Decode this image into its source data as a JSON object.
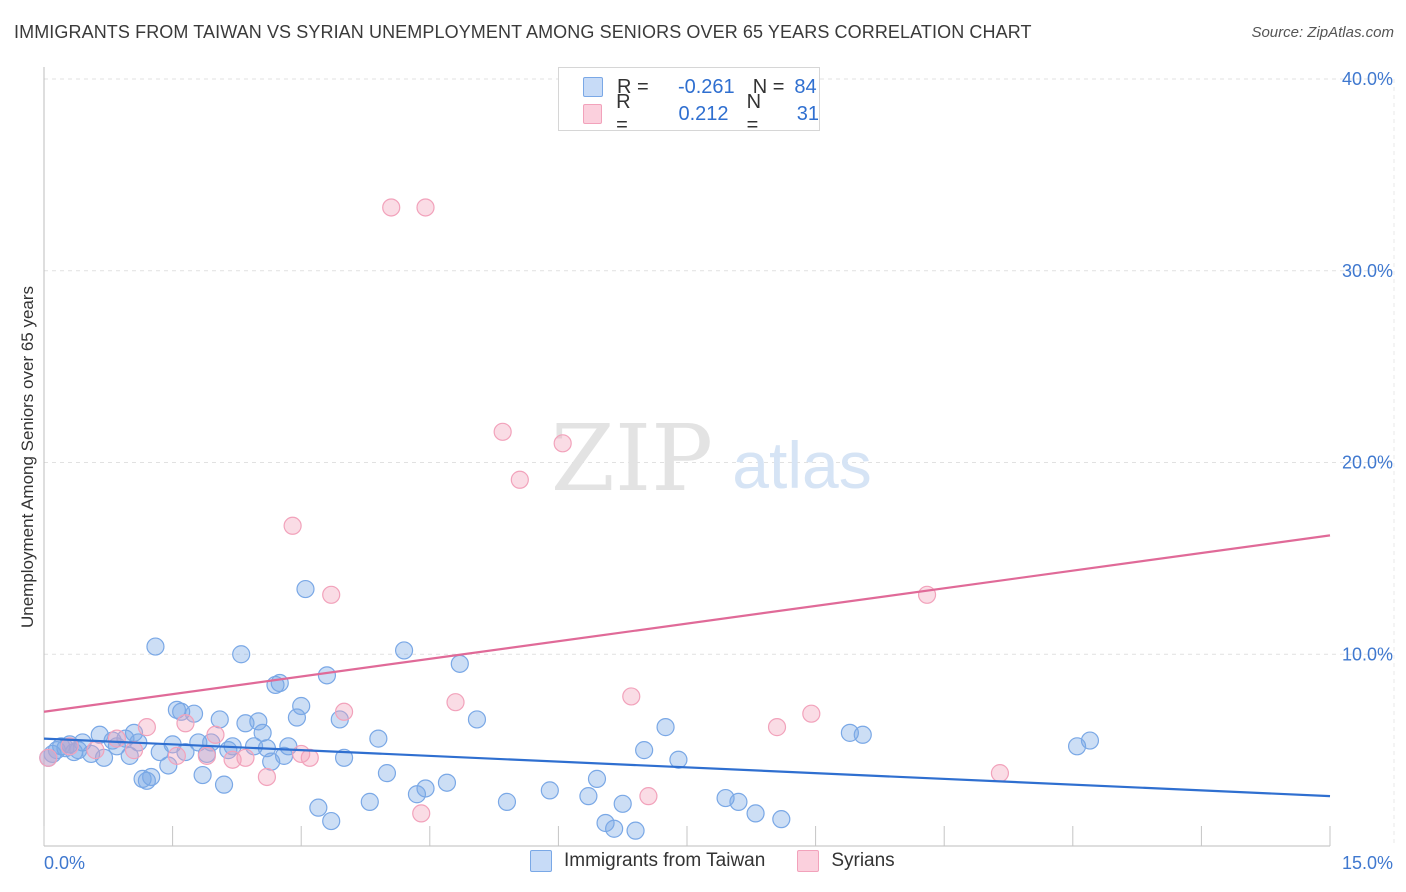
{
  "title": "IMMIGRANTS FROM TAIWAN VS SYRIAN UNEMPLOYMENT AMONG SENIORS OVER 65 YEARS CORRELATION CHART",
  "source": "Source: ZipAtlas.com",
  "watermark": {
    "zip": "ZIP",
    "atlas": "atlas"
  },
  "legend": {
    "rows": [
      {
        "r_label": "R =",
        "r_value": "-0.261",
        "n_label": "N =",
        "n_value": "84",
        "color": "#a9c8f2"
      },
      {
        "r_label": "R =",
        "r_value": "0.212",
        "n_label": "N =",
        "n_value": "31",
        "color": "#f7b8cb"
      }
    ]
  },
  "bottom_legend": [
    {
      "label": "Immigrants from Taiwan",
      "color": "#a9c8f2"
    },
    {
      "label": "Syrians",
      "color": "#f7b8cb"
    }
  ],
  "chart_data": {
    "type": "scatter",
    "title": "IMMIGRANTS FROM TAIWAN VS SYRIAN UNEMPLOYMENT AMONG SENIORS OVER 65 YEARS CORRELATION CHART",
    "xlabel": "",
    "ylabel": "Unemployment Among Seniors over 65 years",
    "xlim": [
      0,
      15
    ],
    "ylim": [
      0,
      40
    ],
    "x_tick_labels": [
      "0.0%",
      "15.0%"
    ],
    "y_ticks": [
      10,
      20,
      30,
      40
    ],
    "y_tick_labels": [
      "10.0%",
      "20.0%",
      "30.0%",
      "40.0%"
    ],
    "grid": true,
    "series": [
      {
        "name": "Immigrants from Taiwan",
        "color": "#7aa8e6",
        "line_color": "#2f6fd0",
        "trend": [
          [
            0,
            5.6
          ],
          [
            15,
            2.6
          ]
        ],
        "points": [
          [
            0.1,
            4.8
          ],
          [
            0.15,
            5.0
          ],
          [
            0.2,
            5.2
          ],
          [
            0.25,
            5.1
          ],
          [
            0.3,
            5.3
          ],
          [
            0.35,
            4.9
          ],
          [
            0.45,
            5.4
          ],
          [
            0.55,
            4.8
          ],
          [
            0.65,
            5.8
          ],
          [
            0.7,
            4.6
          ],
          [
            0.8,
            5.5
          ],
          [
            0.85,
            5.2
          ],
          [
            0.95,
            5.6
          ],
          [
            1.0,
            4.7
          ],
          [
            1.1,
            5.4
          ],
          [
            1.15,
            3.5
          ],
          [
            1.2,
            3.4
          ],
          [
            1.25,
            3.6
          ],
          [
            1.3,
            10.4
          ],
          [
            1.35,
            4.9
          ],
          [
            1.45,
            4.2
          ],
          [
            1.5,
            5.3
          ],
          [
            1.55,
            7.1
          ],
          [
            1.6,
            7.0
          ],
          [
            1.65,
            4.9
          ],
          [
            1.75,
            6.9
          ],
          [
            1.8,
            5.4
          ],
          [
            1.85,
            3.7
          ],
          [
            1.9,
            4.8
          ],
          [
            1.95,
            5.4
          ],
          [
            2.05,
            6.6
          ],
          [
            2.1,
            3.2
          ],
          [
            2.15,
            5.0
          ],
          [
            2.2,
            5.2
          ],
          [
            2.3,
            10.0
          ],
          [
            2.35,
            6.4
          ],
          [
            2.45,
            5.2
          ],
          [
            2.5,
            6.5
          ],
          [
            2.55,
            5.9
          ],
          [
            2.6,
            5.1
          ],
          [
            2.7,
            8.4
          ],
          [
            2.75,
            8.5
          ],
          [
            2.8,
            4.7
          ],
          [
            2.85,
            5.2
          ],
          [
            2.95,
            6.7
          ],
          [
            3.0,
            7.3
          ],
          [
            3.05,
            13.4
          ],
          [
            3.2,
            2.0
          ],
          [
            3.3,
            8.9
          ],
          [
            3.35,
            1.3
          ],
          [
            3.45,
            6.6
          ],
          [
            3.5,
            4.6
          ],
          [
            3.8,
            2.3
          ],
          [
            4.0,
            3.8
          ],
          [
            4.2,
            10.2
          ],
          [
            4.35,
            2.7
          ],
          [
            4.45,
            3.0
          ],
          [
            4.7,
            3.3
          ],
          [
            4.85,
            9.5
          ],
          [
            5.05,
            6.6
          ],
          [
            5.4,
            2.3
          ],
          [
            5.9,
            2.9
          ],
          [
            6.35,
            2.6
          ],
          [
            6.45,
            3.5
          ],
          [
            6.55,
            1.2
          ],
          [
            6.65,
            0.9
          ],
          [
            6.75,
            2.2
          ],
          [
            6.9,
            0.8
          ],
          [
            7.0,
            5.0
          ],
          [
            7.25,
            6.2
          ],
          [
            7.4,
            4.5
          ],
          [
            7.95,
            2.5
          ],
          [
            8.1,
            2.3
          ],
          [
            8.3,
            1.7
          ],
          [
            8.6,
            1.4
          ],
          [
            9.4,
            5.9
          ],
          [
            9.55,
            5.8
          ],
          [
            12.05,
            5.2
          ],
          [
            12.2,
            5.5
          ],
          [
            0.05,
            4.6
          ],
          [
            0.4,
            5.0
          ],
          [
            1.05,
            5.9
          ],
          [
            2.65,
            4.4
          ],
          [
            3.9,
            5.6
          ]
        ]
      },
      {
        "name": "Syrians",
        "color": "#f2a2bb",
        "line_color": "#e06a98",
        "trend": [
          [
            0,
            7.0
          ],
          [
            15,
            16.2
          ]
        ],
        "points": [
          [
            0.05,
            4.6
          ],
          [
            0.3,
            5.2
          ],
          [
            0.6,
            5.0
          ],
          [
            0.85,
            5.6
          ],
          [
            1.05,
            5.0
          ],
          [
            1.2,
            6.2
          ],
          [
            1.55,
            4.7
          ],
          [
            1.65,
            6.4
          ],
          [
            1.9,
            4.7
          ],
          [
            2.0,
            5.8
          ],
          [
            2.2,
            4.5
          ],
          [
            2.35,
            4.6
          ],
          [
            2.6,
            3.6
          ],
          [
            2.9,
            16.7
          ],
          [
            3.1,
            4.6
          ],
          [
            3.35,
            13.1
          ],
          [
            3.5,
            7.0
          ],
          [
            4.05,
            33.3
          ],
          [
            4.45,
            33.3
          ],
          [
            4.4,
            1.7
          ],
          [
            4.8,
            7.5
          ],
          [
            5.35,
            21.6
          ],
          [
            5.55,
            19.1
          ],
          [
            6.05,
            21.0
          ],
          [
            6.85,
            7.8
          ],
          [
            7.05,
            2.6
          ],
          [
            8.55,
            6.2
          ],
          [
            8.95,
            6.9
          ],
          [
            10.3,
            13.1
          ],
          [
            11.15,
            3.8
          ],
          [
            3.0,
            4.8
          ]
        ]
      }
    ]
  }
}
